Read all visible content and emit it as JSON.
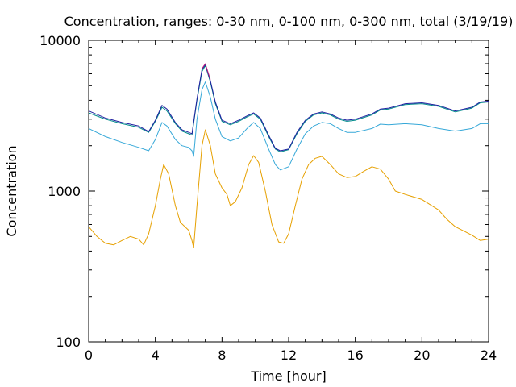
{
  "chart_data": {
    "type": "line",
    "title": "Concentration, ranges: 0-30 nm, 0-100 nm, 0-300 nm, total (3/19/19)",
    "xlabel": "Time [hour]",
    "ylabel": "Concentration",
    "x_ticks": [
      "0",
      "4",
      "8",
      "12",
      "16",
      "20",
      "24"
    ],
    "y_ticks": [
      "100",
      "1000",
      "10000"
    ],
    "xlim": [
      0,
      24
    ],
    "ylim": [
      100,
      10000
    ],
    "y_scale": "log",
    "grid": false,
    "legend": "none",
    "series": [
      {
        "color": "#e6a000",
        "points": [
          [
            0,
            580
          ],
          [
            0.5,
            500
          ],
          [
            1,
            450
          ],
          [
            1.5,
            440
          ],
          [
            2,
            470
          ],
          [
            2.5,
            500
          ],
          [
            3,
            480
          ],
          [
            3.3,
            440
          ],
          [
            3.6,
            520
          ],
          [
            4,
            800
          ],
          [
            4.3,
            1200
          ],
          [
            4.5,
            1500
          ],
          [
            4.8,
            1300
          ],
          [
            5.2,
            800
          ],
          [
            5.5,
            620
          ],
          [
            6,
            550
          ],
          [
            6.2,
            470
          ],
          [
            6.3,
            420
          ],
          [
            6.5,
            800
          ],
          [
            6.8,
            2000
          ],
          [
            7,
            2550
          ],
          [
            7.3,
            2000
          ],
          [
            7.6,
            1300
          ],
          [
            8,
            1050
          ],
          [
            8.3,
            950
          ],
          [
            8.5,
            800
          ],
          [
            8.8,
            850
          ],
          [
            9.2,
            1050
          ],
          [
            9.6,
            1500
          ],
          [
            9.9,
            1720
          ],
          [
            10.2,
            1550
          ],
          [
            10.6,
            1000
          ],
          [
            11,
            600
          ],
          [
            11.4,
            460
          ],
          [
            11.7,
            450
          ],
          [
            12,
            520
          ],
          [
            12.4,
            800
          ],
          [
            12.8,
            1200
          ],
          [
            13.2,
            1500
          ],
          [
            13.6,
            1650
          ],
          [
            14,
            1700
          ],
          [
            14.5,
            1500
          ],
          [
            15,
            1300
          ],
          [
            15.5,
            1230
          ],
          [
            16,
            1250
          ],
          [
            16.5,
            1350
          ],
          [
            17,
            1450
          ],
          [
            17.5,
            1400
          ],
          [
            18,
            1200
          ],
          [
            18.4,
            1000
          ],
          [
            19,
            950
          ],
          [
            20,
            880
          ],
          [
            21,
            750
          ],
          [
            21.5,
            650
          ],
          [
            22,
            580
          ],
          [
            23,
            510
          ],
          [
            23.5,
            470
          ],
          [
            24,
            480
          ]
        ]
      },
      {
        "color": "#36a8d8",
        "points": [
          [
            0,
            2600
          ],
          [
            1,
            2300
          ],
          [
            2,
            2100
          ],
          [
            3,
            1950
          ],
          [
            3.6,
            1850
          ],
          [
            4,
            2200
          ],
          [
            4.4,
            2850
          ],
          [
            4.7,
            2700
          ],
          [
            5.2,
            2200
          ],
          [
            5.6,
            2000
          ],
          [
            6,
            1950
          ],
          [
            6.2,
            1850
          ],
          [
            6.3,
            1700
          ],
          [
            6.5,
            3000
          ],
          [
            6.8,
            4700
          ],
          [
            7,
            5300
          ],
          [
            7.3,
            4200
          ],
          [
            7.6,
            3000
          ],
          [
            8,
            2300
          ],
          [
            8.5,
            2150
          ],
          [
            9,
            2250
          ],
          [
            9.5,
            2600
          ],
          [
            9.9,
            2850
          ],
          [
            10.3,
            2600
          ],
          [
            10.8,
            1900
          ],
          [
            11.2,
            1500
          ],
          [
            11.5,
            1380
          ],
          [
            12,
            1450
          ],
          [
            12.5,
            1900
          ],
          [
            13,
            2400
          ],
          [
            13.5,
            2700
          ],
          [
            14,
            2850
          ],
          [
            14.5,
            2800
          ],
          [
            15,
            2600
          ],
          [
            15.5,
            2450
          ],
          [
            16,
            2450
          ],
          [
            17,
            2600
          ],
          [
            17.5,
            2780
          ],
          [
            18,
            2750
          ],
          [
            19,
            2800
          ],
          [
            20,
            2750
          ],
          [
            21,
            2600
          ],
          [
            22,
            2500
          ],
          [
            23,
            2600
          ],
          [
            23.5,
            2800
          ],
          [
            24,
            2800
          ]
        ]
      },
      {
        "color": "#008b8b",
        "points": [
          [
            0,
            3300
          ],
          [
            1,
            3000
          ],
          [
            2,
            2800
          ],
          [
            3,
            2650
          ],
          [
            3.6,
            2450
          ],
          [
            4,
            2900
          ],
          [
            4.4,
            3600
          ],
          [
            4.7,
            3400
          ],
          [
            5.2,
            2800
          ],
          [
            5.6,
            2500
          ],
          [
            6,
            2400
          ],
          [
            6.2,
            2350
          ],
          [
            6.5,
            4000
          ],
          [
            6.8,
            6200
          ],
          [
            7,
            6800
          ],
          [
            7.3,
            5300
          ],
          [
            7.6,
            3800
          ],
          [
            8,
            2900
          ],
          [
            8.5,
            2750
          ],
          [
            9,
            2900
          ],
          [
            9.5,
            3100
          ],
          [
            9.9,
            3250
          ],
          [
            10.3,
            3000
          ],
          [
            10.8,
            2300
          ],
          [
            11.2,
            1900
          ],
          [
            11.5,
            1820
          ],
          [
            12,
            1880
          ],
          [
            12.5,
            2400
          ],
          [
            13,
            2900
          ],
          [
            13.5,
            3200
          ],
          [
            14,
            3300
          ],
          [
            14.5,
            3200
          ],
          [
            15,
            3000
          ],
          [
            15.5,
            2900
          ],
          [
            16,
            2950
          ],
          [
            17,
            3200
          ],
          [
            17.5,
            3450
          ],
          [
            18,
            3500
          ],
          [
            19,
            3750
          ],
          [
            20,
            3800
          ],
          [
            21,
            3650
          ],
          [
            22,
            3350
          ],
          [
            23,
            3550
          ],
          [
            23.5,
            3850
          ],
          [
            24,
            3900
          ]
        ]
      },
      {
        "color": "#2020a0",
        "points": [
          [
            0,
            3400
          ],
          [
            1,
            3050
          ],
          [
            2,
            2850
          ],
          [
            3,
            2700
          ],
          [
            3.6,
            2480
          ],
          [
            4,
            2950
          ],
          [
            4.4,
            3700
          ],
          [
            4.7,
            3500
          ],
          [
            5.2,
            2850
          ],
          [
            5.6,
            2550
          ],
          [
            6,
            2450
          ],
          [
            6.2,
            2400
          ],
          [
            6.5,
            4100
          ],
          [
            6.8,
            6400
          ],
          [
            7,
            6900
          ],
          [
            7.3,
            5400
          ],
          [
            7.6,
            3900
          ],
          [
            8,
            2950
          ],
          [
            8.5,
            2800
          ],
          [
            9,
            2950
          ],
          [
            9.5,
            3150
          ],
          [
            9.9,
            3300
          ],
          [
            10.3,
            3050
          ],
          [
            10.8,
            2350
          ],
          [
            11.2,
            1920
          ],
          [
            11.5,
            1850
          ],
          [
            12,
            1900
          ],
          [
            12.5,
            2450
          ],
          [
            13,
            2950
          ],
          [
            13.5,
            3250
          ],
          [
            14,
            3350
          ],
          [
            14.5,
            3250
          ],
          [
            15,
            3050
          ],
          [
            15.5,
            2950
          ],
          [
            16,
            3000
          ],
          [
            17,
            3250
          ],
          [
            17.5,
            3500
          ],
          [
            18,
            3550
          ],
          [
            19,
            3800
          ],
          [
            20,
            3850
          ],
          [
            21,
            3700
          ],
          [
            22,
            3400
          ],
          [
            23,
            3600
          ],
          [
            23.5,
            3900
          ],
          [
            24,
            3950
          ]
        ]
      },
      {
        "color": "#c02080",
        "points": [
          [
            6.8,
            6500
          ],
          [
            7,
            7000
          ],
          [
            7.3,
            5500
          ]
        ]
      }
    ]
  }
}
